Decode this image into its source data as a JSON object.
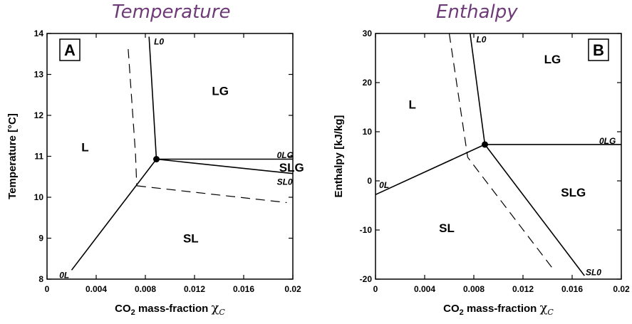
{
  "titles": {
    "left": "Temperature",
    "right": "Enthalpy"
  },
  "chart_data": [
    {
      "type": "line",
      "panel_label": "A",
      "xlabel_main": "CO",
      "xlabel_sub": "2",
      "xlabel_rest": " mass-fraction ",
      "xlabel_symbol": "χ",
      "xlabel_symbol_sub": "C",
      "ylabel": "Temperature [°C]",
      "xlim": [
        0,
        0.02
      ],
      "ylim": [
        8,
        14
      ],
      "xticks": [
        0,
        0.004,
        0.008,
        0.012,
        0.016,
        0.02
      ],
      "xtick_labels": [
        "0",
        "0.004",
        "0.008",
        "0.012",
        "0.016",
        "0.02"
      ],
      "yticks": [
        8,
        9,
        10,
        11,
        12,
        13,
        14
      ],
      "ytick_labels": [
        "8",
        "9",
        "10",
        "11",
        "12",
        "13",
        "14"
      ],
      "triple_point": {
        "x": 0.0089,
        "y": 10.93
      },
      "series": [
        {
          "style": "solid",
          "label": "L0",
          "x": [
            0.0083,
            0.0089
          ],
          "y": [
            13.92,
            10.93
          ]
        },
        {
          "style": "solid",
          "label": "0L",
          "x": [
            0.002,
            0.0089
          ],
          "y": [
            8.22,
            10.93
          ]
        },
        {
          "style": "solid",
          "label": "0LG",
          "x": [
            0.0089,
            0.02
          ],
          "y": [
            10.93,
            10.93
          ]
        },
        {
          "style": "solid",
          "label": "SL0",
          "x": [
            0.0089,
            0.02
          ],
          "y": [
            10.93,
            10.58
          ]
        },
        {
          "style": "dashed",
          "label": "",
          "x": [
            0.0066,
            0.0072,
            0.0073
          ],
          "y": [
            13.62,
            11.05,
            10.28
          ]
        },
        {
          "style": "dashed",
          "label": "",
          "x": [
            0.0073,
            0.0195
          ],
          "y": [
            10.28,
            9.87
          ]
        }
      ],
      "region_labels": [
        {
          "text": "LG",
          "x": 0.0141,
          "y": 12.6
        },
        {
          "text": "L",
          "x": 0.0031,
          "y": 11.23
        },
        {
          "text": "SLG",
          "x": 0.0199,
          "y": 10.73
        },
        {
          "text": "SL",
          "x": 0.0117,
          "y": 9.0
        }
      ],
      "boundary_labels": [
        {
          "text": "L0",
          "x": 0.0087,
          "y": 13.8,
          "anchor": "start"
        },
        {
          "text": "0LG",
          "x": 0.0187,
          "y": 11.03,
          "anchor": "start"
        },
        {
          "text": "SL0",
          "x": 0.0187,
          "y": 10.37,
          "anchor": "start"
        },
        {
          "text": "0L",
          "x": 0.001,
          "y": 8.1,
          "anchor": "start"
        }
      ]
    },
    {
      "type": "line",
      "panel_label": "B",
      "xlabel_main": "CO",
      "xlabel_sub": "2",
      "xlabel_rest": " mass-fraction ",
      "xlabel_symbol": "χ",
      "xlabel_symbol_sub": "C",
      "ylabel": "Enthalpy   [kJ/kg]",
      "xlim": [
        0,
        0.02
      ],
      "ylim": [
        -20,
        30
      ],
      "xticks": [
        0,
        0.004,
        0.008,
        0.012,
        0.016,
        0.02
      ],
      "xtick_labels": [
        "0",
        "0.004",
        "0.008",
        "0.012",
        "0.016",
        "0.02"
      ],
      "yticks": [
        -20,
        -10,
        0,
        10,
        20,
        30
      ],
      "ytick_labels": [
        "-20",
        "-10",
        "0",
        "10",
        "20",
        "30"
      ],
      "triple_point": {
        "x": 0.0089,
        "y": 7.4
      },
      "series": [
        {
          "style": "solid",
          "label": "L0",
          "x": [
            0.0077,
            0.0089
          ],
          "y": [
            30,
            7.4
          ]
        },
        {
          "style": "solid",
          "label": "0L",
          "x": [
            0,
            0.0089
          ],
          "y": [
            -2.8,
            7.4
          ]
        },
        {
          "style": "solid",
          "label": "0LG",
          "x": [
            0.0089,
            0.02
          ],
          "y": [
            7.4,
            7.4
          ]
        },
        {
          "style": "solid",
          "label": "SL0",
          "x": [
            0.0089,
            0.017
          ],
          "y": [
            7.4,
            -19.3
          ]
        },
        {
          "style": "dashed",
          "label": "",
          "x": [
            0.006,
            0.0075,
            0.0145
          ],
          "y": [
            30,
            4.8,
            -18.1
          ]
        }
      ],
      "region_labels": [
        {
          "text": "LG",
          "x": 0.0144,
          "y": 24.8
        },
        {
          "text": "L",
          "x": 0.003,
          "y": 15.6
        },
        {
          "text": "SLG",
          "x": 0.0161,
          "y": -2.3
        },
        {
          "text": "SL",
          "x": 0.0058,
          "y": -9.6
        }
      ],
      "boundary_labels": [
        {
          "text": "L0",
          "x": 0.0082,
          "y": 28.8,
          "anchor": "start"
        },
        {
          "text": "0LG",
          "x": 0.0182,
          "y": 8.1,
          "anchor": "start"
        },
        {
          "text": "SL0",
          "x": 0.0171,
          "y": -18.6,
          "anchor": "start"
        },
        {
          "text": "0L",
          "x": 0.0003,
          "y": -0.9,
          "anchor": "start"
        }
      ]
    }
  ]
}
